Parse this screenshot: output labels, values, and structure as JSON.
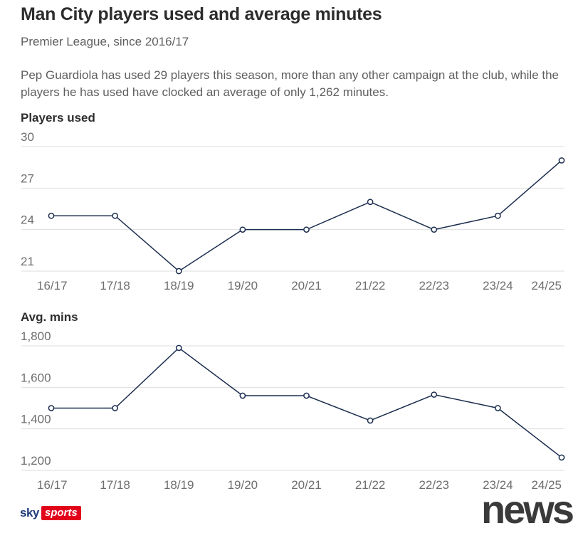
{
  "header": {
    "title": "Man City players used and average minutes",
    "subtitle": "Premier League, since 2016/17",
    "description": "Pep Guardiola has used 29 players this season, more than any other campaign at the club, while the players he has used have clocked an average of only 1,262 minutes."
  },
  "colors": {
    "line": "#1c2e4f",
    "grid": "#dedede",
    "brand_red": "#e2001a"
  },
  "chart_data": [
    {
      "type": "line",
      "title": "Players used",
      "categories": [
        "16/17",
        "17/18",
        "18/19",
        "19/20",
        "20/21",
        "21/22",
        "22/23",
        "23/24",
        "24/25"
      ],
      "values": [
        25,
        25,
        21,
        24,
        24,
        26,
        24,
        25,
        29
      ],
      "yticks": [
        21,
        24,
        27,
        30
      ],
      "ytick_labels": [
        "21",
        "24",
        "27",
        "30"
      ],
      "ylim": [
        21,
        30
      ],
      "grid": true
    },
    {
      "type": "line",
      "title": "Avg. mins",
      "categories": [
        "16/17",
        "17/18",
        "18/19",
        "19/20",
        "20/21",
        "21/22",
        "22/23",
        "23/24",
        "24/25"
      ],
      "values": [
        1500,
        1500,
        1790,
        1560,
        1560,
        1440,
        1565,
        1500,
        1262
      ],
      "yticks": [
        1200,
        1400,
        1600,
        1800
      ],
      "ytick_labels": [
        "1,200",
        "1,400",
        "1,600",
        "1,800"
      ],
      "ylim": [
        1200,
        1800
      ],
      "grid": true
    }
  ],
  "footer": {
    "brand_sky": "sky",
    "brand_sports": "sports",
    "news_logo": "news"
  }
}
